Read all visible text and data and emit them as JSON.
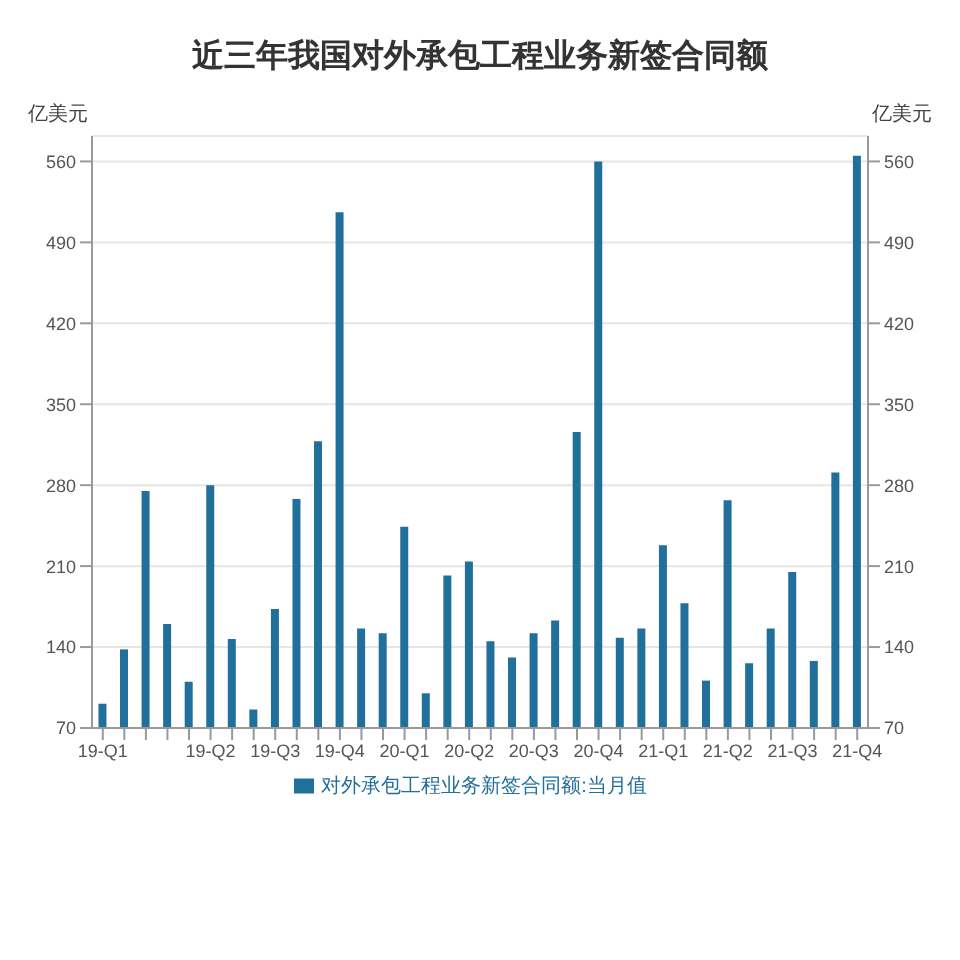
{
  "chart_data": {
    "type": "bar",
    "title": "近三年我国对外承包工程业务新签合同额",
    "ylabel": "亿美元",
    "y2label": "亿美元",
    "categories": [
      "19-Q1",
      null,
      null,
      null,
      null,
      "19-Q2",
      null,
      null,
      "19-Q3",
      null,
      null,
      "19-Q4",
      null,
      null,
      "20-Q1",
      null,
      null,
      "20-Q2",
      null,
      null,
      "20-Q3",
      null,
      null,
      "20-Q4",
      null,
      null,
      "21-Q1",
      null,
      null,
      "21-Q2",
      null,
      null,
      "21-Q3",
      null,
      null,
      "21-Q4"
    ],
    "series": [
      {
        "name": "对外承包工程业务新签合同额:当月值",
        "color": "#216f9b",
        "values": [
          91,
          138,
          275,
          160,
          110,
          280,
          147,
          86,
          173,
          268,
          318,
          516,
          156,
          152,
          244,
          100,
          202,
          214,
          145,
          131,
          152,
          163,
          326,
          560,
          148,
          156,
          228,
          178,
          111,
          267,
          126,
          156,
          205,
          128,
          291,
          565
        ]
      }
    ],
    "ylim": [
      70,
      582
    ],
    "yticks": [
      70,
      140,
      210,
      280,
      350,
      420,
      490,
      560
    ],
    "y2lim": [
      70,
      582
    ],
    "y2ticks": [
      70,
      140,
      210,
      280,
      350,
      420,
      490,
      560
    ],
    "grid": "y",
    "legend": "bottom"
  }
}
